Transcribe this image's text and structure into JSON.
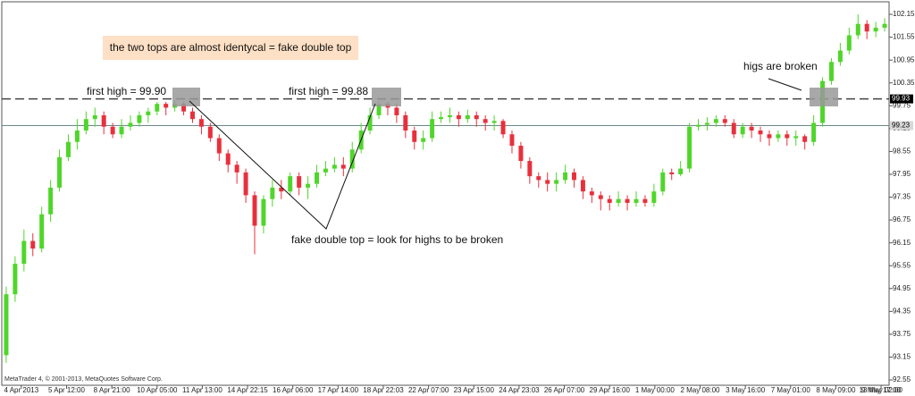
{
  "chart_data": {
    "type": "candlestick",
    "up_color": "#4fd62a",
    "down_color": "#e8303c",
    "ohlc": [
      [
        93.2,
        95.0,
        93.0,
        94.8
      ],
      [
        94.8,
        95.8,
        94.6,
        95.6
      ],
      [
        95.6,
        96.5,
        95.4,
        96.2
      ],
      [
        96.2,
        96.4,
        95.8,
        96.0
      ],
      [
        96.0,
        97.1,
        95.9,
        96.9
      ],
      [
        96.9,
        97.8,
        96.7,
        97.6
      ],
      [
        97.6,
        98.6,
        97.5,
        98.4
      ],
      [
        98.4,
        99.0,
        98.3,
        98.8
      ],
      [
        98.8,
        99.4,
        98.6,
        99.1
      ],
      [
        99.1,
        99.6,
        99.0,
        99.4
      ],
      [
        99.4,
        99.7,
        99.2,
        99.5
      ],
      [
        99.5,
        99.6,
        99.0,
        99.2
      ],
      [
        99.2,
        99.3,
        98.9,
        99.0
      ],
      [
        99.0,
        99.4,
        98.9,
        99.2
      ],
      [
        99.2,
        99.5,
        99.1,
        99.3
      ],
      [
        99.3,
        99.6,
        99.2,
        99.5
      ],
      [
        99.5,
        99.7,
        99.3,
        99.6
      ],
      [
        99.6,
        99.85,
        99.5,
        99.8
      ],
      [
        99.8,
        99.85,
        99.5,
        99.7
      ],
      [
        99.7,
        99.9,
        99.6,
        99.8
      ],
      [
        99.8,
        99.85,
        99.5,
        99.6
      ],
      [
        99.6,
        99.7,
        99.3,
        99.4
      ],
      [
        99.4,
        99.5,
        99.0,
        99.2
      ],
      [
        99.2,
        99.3,
        98.8,
        98.9
      ],
      [
        98.9,
        99.0,
        98.3,
        98.5
      ],
      [
        98.5,
        98.6,
        98.0,
        98.2
      ],
      [
        98.2,
        98.3,
        97.7,
        98.0
      ],
      [
        98.0,
        98.1,
        97.2,
        97.4
      ],
      [
        97.4,
        97.5,
        95.85,
        96.6
      ],
      [
        96.6,
        97.4,
        96.4,
        97.3
      ],
      [
        97.3,
        97.8,
        97.1,
        97.6
      ],
      [
        97.6,
        97.8,
        97.3,
        97.5
      ],
      [
        97.5,
        98.0,
        97.4,
        97.9
      ],
      [
        97.9,
        98.0,
        97.4,
        97.6
      ],
      [
        97.6,
        97.9,
        97.3,
        97.7
      ],
      [
        97.7,
        98.2,
        97.6,
        98.0
      ],
      [
        98.0,
        98.3,
        97.9,
        98.1
      ],
      [
        98.1,
        98.4,
        98.0,
        98.2
      ],
      [
        98.2,
        98.4,
        97.9,
        98.1
      ],
      [
        98.1,
        98.8,
        98.0,
        98.6
      ],
      [
        98.6,
        99.3,
        98.5,
        99.1
      ],
      [
        99.1,
        99.7,
        99.0,
        99.5
      ],
      [
        99.5,
        99.88,
        99.4,
        99.8
      ],
      [
        99.8,
        99.85,
        99.5,
        99.7
      ],
      [
        99.7,
        99.8,
        99.3,
        99.5
      ],
      [
        99.5,
        99.6,
        98.9,
        99.1
      ],
      [
        99.1,
        99.2,
        98.6,
        98.8
      ],
      [
        98.8,
        99.1,
        98.6,
        98.9
      ],
      [
        98.9,
        99.6,
        98.8,
        99.4
      ],
      [
        99.4,
        99.6,
        99.3,
        99.45
      ],
      [
        99.45,
        99.7,
        99.3,
        99.5
      ],
      [
        99.5,
        99.6,
        99.2,
        99.4
      ],
      [
        99.4,
        99.65,
        99.3,
        99.5
      ],
      [
        99.5,
        99.6,
        99.2,
        99.4
      ],
      [
        99.4,
        99.5,
        99.1,
        99.3
      ],
      [
        99.3,
        99.5,
        99.1,
        99.35
      ],
      [
        99.35,
        99.4,
        98.9,
        99.0
      ],
      [
        99.0,
        99.1,
        98.5,
        98.7
      ],
      [
        98.7,
        98.8,
        98.1,
        98.3
      ],
      [
        98.3,
        98.4,
        97.7,
        97.9
      ],
      [
        97.9,
        98.0,
        97.6,
        97.8
      ],
      [
        97.8,
        98.0,
        97.5,
        97.7
      ],
      [
        97.7,
        98.0,
        97.5,
        97.8
      ],
      [
        97.8,
        98.2,
        97.7,
        98.0
      ],
      [
        98.0,
        98.1,
        97.6,
        97.8
      ],
      [
        97.8,
        97.9,
        97.3,
        97.5
      ],
      [
        97.5,
        97.6,
        97.2,
        97.4
      ],
      [
        97.4,
        97.5,
        97.0,
        97.3
      ],
      [
        97.3,
        97.4,
        97.0,
        97.2
      ],
      [
        97.2,
        97.5,
        97.1,
        97.3
      ],
      [
        97.3,
        97.4,
        97.0,
        97.2
      ],
      [
        97.2,
        97.5,
        97.1,
        97.3
      ],
      [
        97.3,
        97.4,
        97.1,
        97.2
      ],
      [
        97.2,
        97.7,
        97.1,
        97.5
      ],
      [
        97.5,
        98.1,
        97.4,
        98.0
      ],
      [
        98.0,
        98.1,
        97.8,
        97.95
      ],
      [
        97.95,
        98.3,
        97.9,
        98.1
      ],
      [
        98.1,
        99.3,
        98.0,
        99.2
      ],
      [
        99.2,
        99.4,
        99.1,
        99.25
      ],
      [
        99.25,
        99.45,
        99.1,
        99.3
      ],
      [
        99.3,
        99.5,
        99.2,
        99.4
      ],
      [
        99.4,
        99.5,
        99.2,
        99.3
      ],
      [
        99.3,
        99.4,
        98.9,
        99.0
      ],
      [
        99.0,
        99.3,
        98.9,
        99.2
      ],
      [
        99.2,
        99.3,
        98.9,
        99.1
      ],
      [
        99.1,
        99.2,
        98.8,
        99.0
      ],
      [
        99.0,
        99.1,
        98.7,
        98.9
      ],
      [
        98.9,
        99.1,
        98.8,
        99.0
      ],
      [
        99.0,
        99.1,
        98.7,
        98.9
      ],
      [
        98.9,
        99.1,
        98.7,
        98.95
      ],
      [
        98.95,
        99.0,
        98.6,
        98.8
      ],
      [
        98.8,
        99.5,
        98.7,
        99.3
      ],
      [
        99.3,
        100.5,
        99.2,
        100.4
      ],
      [
        100.4,
        101.0,
        100.3,
        100.9
      ],
      [
        100.9,
        101.4,
        100.8,
        101.2
      ],
      [
        101.2,
        101.8,
        101.1,
        101.6
      ],
      [
        101.6,
        102.15,
        101.5,
        101.9
      ],
      [
        101.9,
        102.0,
        101.5,
        101.7
      ],
      [
        101.7,
        101.95,
        101.55,
        101.8
      ],
      [
        101.8,
        102.05,
        101.7,
        101.9
      ]
    ],
    "xlim": [
      -0.5,
      99.5
    ],
    "xticks": [
      {
        "value": 1.7,
        "label": "4 Apr 2013"
      },
      {
        "value": 6.8,
        "label": "5 Apr 12:00"
      },
      {
        "value": 11.9,
        "label": "8 Apr 21:00"
      },
      {
        "value": 17.0,
        "label": "10 Apr 05:00"
      },
      {
        "value": 22.1,
        "label": "11 Apr 13:00"
      },
      {
        "value": 27.2,
        "label": "14 Apr 22:15"
      },
      {
        "value": 32.3,
        "label": "16 Apr 06:00"
      },
      {
        "value": 37.4,
        "label": "17 Apr 14:00"
      },
      {
        "value": 42.5,
        "label": "18 Apr 22:03"
      },
      {
        "value": 47.6,
        "label": "22 Apr 07:00"
      },
      {
        "value": 52.7,
        "label": "23 Apr 15:00"
      },
      {
        "value": 57.8,
        "label": "24 Apr 23:03"
      },
      {
        "value": 62.9,
        "label": "26 Apr 07:00"
      },
      {
        "value": 68.0,
        "label": "29 Apr 16:00"
      },
      {
        "value": 73.1,
        "label": "1 May 00:00"
      },
      {
        "value": 78.2,
        "label": "2 May 08:00"
      },
      {
        "value": 83.3,
        "label": "3 May 16:00"
      },
      {
        "value": 88.4,
        "label": "7 May 01:00"
      },
      {
        "value": 93.5,
        "label": "8 May 09:00"
      },
      {
        "value": 98.6,
        "label": "9 May 17:00"
      }
    ],
    "last_x_label": "13 May 02:00",
    "ylim": [
      92.41,
      102.48
    ],
    "yticks": [
      102.15,
      101.55,
      100.95,
      100.35,
      99.75,
      99.15,
      98.55,
      97.95,
      97.35,
      96.75,
      96.15,
      95.55,
      94.95,
      94.35,
      93.75,
      93.15,
      92.55
    ],
    "hlines": [
      {
        "value": 99.93,
        "style": "dashed"
      },
      {
        "value": 99.23,
        "style": "solid"
      }
    ],
    "annotations": {
      "headline": "the two tops are almost identycal = fake double top",
      "first_high_1": "first high = 99.90",
      "first_high_2": "first high = 99.88",
      "broken": "higs are broken",
      "fake": "fake double top = look for highs to be broken"
    },
    "copyright": "MetaTrader 4, © 2001-2013, MetaQuotes Software Corp."
  }
}
